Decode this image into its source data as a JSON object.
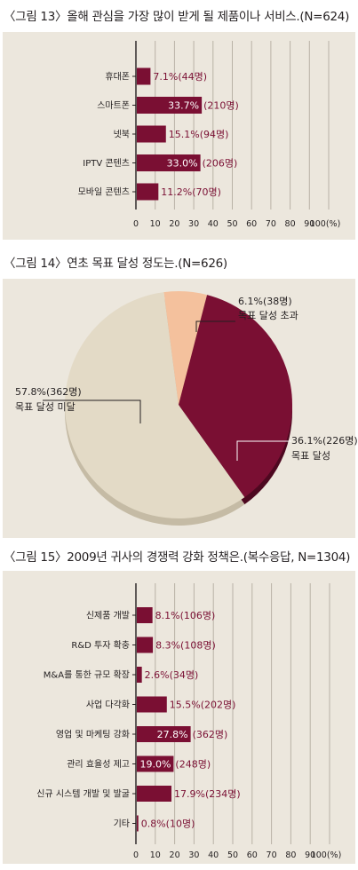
{
  "colors": {
    "bar": "#7a0f33",
    "panel": "#ece7dd",
    "grid": "#b9b2a6",
    "pie_small": "#f4c19d",
    "pie_mid": "#7a0f33",
    "pie_large": "#e3dac6"
  },
  "fig13": {
    "title": "〈그림 13〉올해 관심을 가장 많이 받게 될 제품이나 서비스.(N=624)"
  },
  "fig14": {
    "title": "〈그림 14〉연초 목표 달성 정도는.(N=626)"
  },
  "fig15": {
    "title": "〈그림 15〉2009년 귀사의 경쟁력 강화 정책은.(복수응답, N=1304)"
  },
  "chart_data": [
    {
      "type": "bar",
      "orientation": "horizontal",
      "title": "〈그림 13〉올해 관심을 가장 많이 받게 될 제품이나 서비스.(N=624)",
      "categories": [
        "휴대폰",
        "스마트폰",
        "넷북",
        "IPTV 콘텐츠",
        "모바일 콘텐츠"
      ],
      "values": [
        7.1,
        33.7,
        15.1,
        33.0,
        11.2
      ],
      "labels": [
        "7.1%(44명)",
        "33.7%(210명)",
        "15.1%(94명)",
        "33.0%(206명)",
        "11.2%(70명)"
      ],
      "xlim": [
        0,
        100
      ],
      "ticks": [
        "0",
        "10",
        "20",
        "30",
        "40",
        "50",
        "60",
        "70",
        "80",
        "90",
        "100(%)"
      ],
      "grid": true
    },
    {
      "type": "pie",
      "title": "〈그림 14〉연초 목표 달성 정도는.(N=626)",
      "slices": [
        {
          "value": 6.1,
          "label": "6.1%(38명)",
          "name": "목표 달성 초과"
        },
        {
          "value": 36.1,
          "label": "36.1%(226명)",
          "name": "목표 달성"
        },
        {
          "value": 57.8,
          "label": "57.8%(362명)",
          "name": "목표 달성 미달"
        }
      ]
    },
    {
      "type": "bar",
      "orientation": "horizontal",
      "title": "〈그림 15〉2009년 귀사의 경쟁력 강화 정책은.(복수응답, N=1304)",
      "categories": [
        "신제품 개발",
        "R&D 투자 확충",
        "M&A를 통한 규모 확장",
        "사업 다각화",
        "영업 및 마케팅 강화",
        "관리 효율성 제고",
        "신규 시스템 개발 및 발굴",
        "기타"
      ],
      "values": [
        8.1,
        8.3,
        2.6,
        15.5,
        27.8,
        19.0,
        17.9,
        0.8
      ],
      "labels": [
        "8.1%(106명)",
        "8.3%(108명)",
        "2.6%(34명)",
        "15.5%(202명)",
        "27.8%(362명)",
        "19.0%(248명)",
        "17.9%(234명)",
        "0.8%(10명)"
      ],
      "xlim": [
        0,
        100
      ],
      "ticks": [
        "0",
        "10",
        "20",
        "30",
        "40",
        "50",
        "60",
        "70",
        "80",
        "90",
        "100(%)"
      ],
      "grid": true
    }
  ]
}
